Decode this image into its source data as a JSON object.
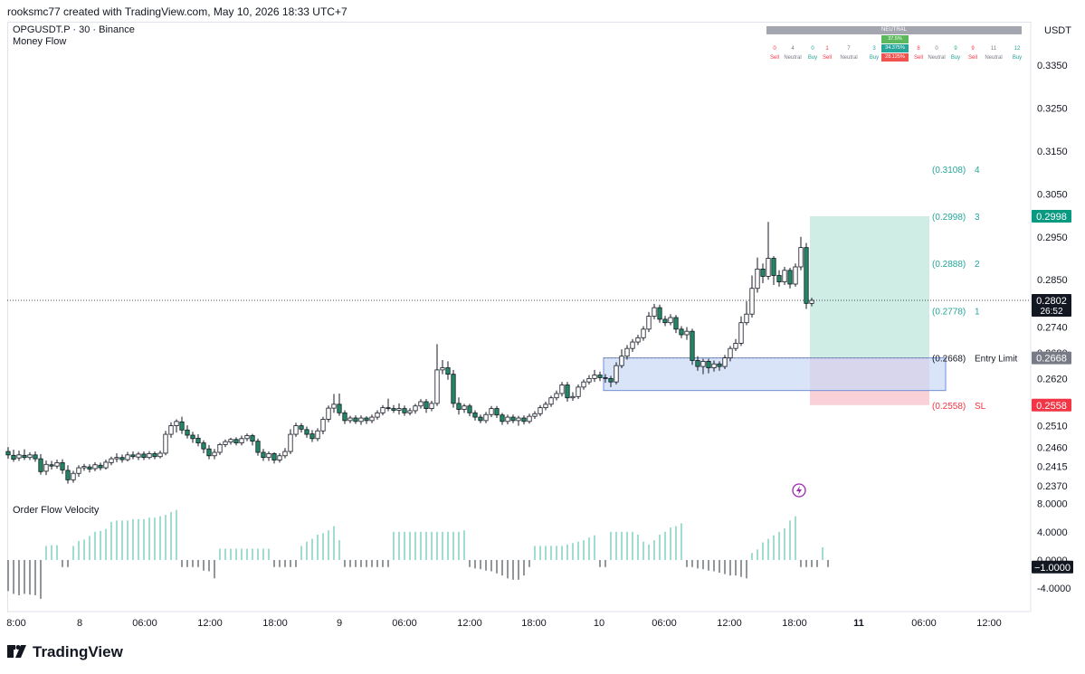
{
  "header": {
    "attribution": "rooksmc77 created with TradingView.com, May 10, 2026 18:33 UTC+7",
    "symbol_line": "OPGUSDT.P · 30 · Binance",
    "indicator_1": "Money Flow",
    "indicator_2": "Order Flow Velocity",
    "currency": "USDT",
    "logo": "TradingView"
  },
  "summary_panel": {
    "title": "NEUTRAL",
    "pct_buy": "37.5%",
    "pct_neutral": "34.375%",
    "pct_sell": "28.125%",
    "counts": [
      "0",
      "4",
      "0",
      "1",
      "7",
      "3",
      "1",
      "8",
      "0",
      "9",
      "9",
      "11",
      "12"
    ],
    "labels": [
      "Sell",
      "Neutral",
      "Buy",
      "Sell",
      "Neutral",
      "Buy",
      "",
      "Sell",
      "Neutral",
      "Buy",
      "Sell",
      "Neutral",
      "Buy"
    ]
  },
  "colors": {
    "up": "#089981",
    "down": "#f23645",
    "candle_up_fill": "#ffffff",
    "candle_down_fill": "#131722",
    "target_zone": "#bfe6dc",
    "stop_zone": "#f8c9cf",
    "entry_box": "#c9d8f7",
    "entry_box_border": "#6f8fd8",
    "osc_up": "#80d0bf",
    "osc_down": "#6f7278"
  },
  "chart_data": {
    "type": "candlestick",
    "title": "OPGUSDT.P · 30 · Binance",
    "price_axis": {
      "ticks": [
        "0.3350",
        "0.3250",
        "0.3150",
        "0.3050",
        "0.2950",
        "0.2850",
        "0.2740",
        "0.2680",
        "0.2620",
        "0.2510",
        "0.2460",
        "0.2415",
        "0.2370"
      ],
      "current_price": "0.2802",
      "countdown": "26:52"
    },
    "time_axis": [
      "8:00",
      "8",
      "06:00",
      "12:00",
      "18:00",
      "9",
      "06:00",
      "12:00",
      "18:00",
      "10",
      "06:00",
      "12:00",
      "18:00",
      "11",
      "06:00",
      "12:00"
    ],
    "candles": [
      [
        0.245,
        0.2442,
        0.246,
        0.2433
      ],
      [
        0.2441,
        0.2432,
        0.2454,
        0.2426
      ],
      [
        0.2435,
        0.2442,
        0.2452,
        0.2428
      ],
      [
        0.2441,
        0.2436,
        0.2455,
        0.243
      ],
      [
        0.2436,
        0.2442,
        0.2448,
        0.243
      ],
      [
        0.2442,
        0.2433,
        0.245,
        0.2426
      ],
      [
        0.2433,
        0.2403,
        0.2444,
        0.2396
      ],
      [
        0.2404,
        0.242,
        0.2429,
        0.2395
      ],
      [
        0.2419,
        0.2416,
        0.2428,
        0.2408
      ],
      [
        0.2416,
        0.2424,
        0.2431,
        0.241
      ],
      [
        0.2424,
        0.2407,
        0.2432,
        0.2398
      ],
      [
        0.2406,
        0.2384,
        0.2418,
        0.2375
      ],
      [
        0.2384,
        0.2399,
        0.2405,
        0.2377
      ],
      [
        0.2399,
        0.2412,
        0.2418,
        0.2391
      ],
      [
        0.2412,
        0.2415,
        0.2421,
        0.2405
      ],
      [
        0.2414,
        0.2409,
        0.242,
        0.2401
      ],
      [
        0.241,
        0.2419,
        0.2425,
        0.2404
      ],
      [
        0.2418,
        0.2412,
        0.2424,
        0.2406
      ],
      [
        0.2412,
        0.2425,
        0.2431,
        0.2408
      ],
      [
        0.2424,
        0.2433,
        0.2438,
        0.2418
      ],
      [
        0.2433,
        0.2436,
        0.2446,
        0.2425
      ],
      [
        0.2436,
        0.2431,
        0.2443,
        0.2424
      ],
      [
        0.2431,
        0.2442,
        0.2449,
        0.2427
      ],
      [
        0.2442,
        0.2438,
        0.245,
        0.2432
      ],
      [
        0.2437,
        0.2444,
        0.2449,
        0.243
      ],
      [
        0.2444,
        0.2436,
        0.245,
        0.243
      ],
      [
        0.2436,
        0.2445,
        0.2451,
        0.2432
      ],
      [
        0.2445,
        0.2438,
        0.245,
        0.2432
      ],
      [
        0.2438,
        0.2446,
        0.2452,
        0.2434
      ],
      [
        0.2446,
        0.249,
        0.2498,
        0.2441
      ],
      [
        0.249,
        0.251,
        0.2518,
        0.2482
      ],
      [
        0.251,
        0.252,
        0.2525,
        0.2494
      ],
      [
        0.2519,
        0.25,
        0.2531,
        0.2491
      ],
      [
        0.25,
        0.2488,
        0.2511,
        0.248
      ],
      [
        0.2488,
        0.248,
        0.2496,
        0.247
      ],
      [
        0.2481,
        0.247,
        0.249,
        0.2462
      ],
      [
        0.247,
        0.2456,
        0.2476,
        0.2446
      ],
      [
        0.2456,
        0.244,
        0.2465,
        0.2432
      ],
      [
        0.244,
        0.2448,
        0.2456,
        0.2432
      ],
      [
        0.2448,
        0.2466,
        0.247,
        0.2442
      ],
      [
        0.2466,
        0.2473,
        0.2478,
        0.246
      ],
      [
        0.2472,
        0.2478,
        0.2482,
        0.2466
      ],
      [
        0.2478,
        0.247,
        0.2483,
        0.2464
      ],
      [
        0.247,
        0.248,
        0.2487,
        0.2464
      ],
      [
        0.248,
        0.2487,
        0.2492,
        0.2474
      ],
      [
        0.2487,
        0.2474,
        0.2491,
        0.2464
      ],
      [
        0.2474,
        0.2448,
        0.248,
        0.244
      ],
      [
        0.2448,
        0.2436,
        0.2456,
        0.2428
      ],
      [
        0.2436,
        0.2445,
        0.245,
        0.2428
      ],
      [
        0.2445,
        0.243,
        0.2448,
        0.2422
      ],
      [
        0.243,
        0.244,
        0.2446,
        0.2424
      ],
      [
        0.244,
        0.245,
        0.2458,
        0.2434
      ],
      [
        0.245,
        0.249,
        0.2502,
        0.2444
      ],
      [
        0.249,
        0.251,
        0.2517,
        0.2484
      ],
      [
        0.251,
        0.2502,
        0.2516,
        0.2494
      ],
      [
        0.2501,
        0.249,
        0.2508,
        0.2482
      ],
      [
        0.2491,
        0.248,
        0.25,
        0.2472
      ],
      [
        0.248,
        0.2498,
        0.2504,
        0.2474
      ],
      [
        0.2498,
        0.2525,
        0.2531,
        0.249
      ],
      [
        0.2525,
        0.2551,
        0.2557,
        0.2518
      ],
      [
        0.2551,
        0.256,
        0.2584,
        0.254
      ],
      [
        0.256,
        0.254,
        0.2585,
        0.2533
      ],
      [
        0.254,
        0.2522,
        0.2546,
        0.2514
      ],
      [
        0.2522,
        0.2528,
        0.2533,
        0.2516
      ],
      [
        0.2528,
        0.252,
        0.2534,
        0.2514
      ],
      [
        0.252,
        0.2528,
        0.2534,
        0.2512
      ],
      [
        0.2528,
        0.2522,
        0.2532,
        0.2514
      ],
      [
        0.2522,
        0.253,
        0.2536,
        0.2516
      ],
      [
        0.253,
        0.254,
        0.2546,
        0.2524
      ],
      [
        0.254,
        0.2552,
        0.2558,
        0.2534
      ],
      [
        0.2552,
        0.255,
        0.2573,
        0.2544
      ],
      [
        0.255,
        0.2546,
        0.2558,
        0.254
      ],
      [
        0.2546,
        0.255,
        0.2562,
        0.2536
      ],
      [
        0.255,
        0.254,
        0.2557,
        0.2533
      ],
      [
        0.254,
        0.2545,
        0.2551,
        0.2534
      ],
      [
        0.2545,
        0.2556,
        0.2561,
        0.2538
      ],
      [
        0.2556,
        0.2566,
        0.2572,
        0.255
      ],
      [
        0.2566,
        0.255,
        0.2572,
        0.254
      ],
      [
        0.255,
        0.2562,
        0.2568,
        0.2544
      ],
      [
        0.2562,
        0.264,
        0.27,
        0.2556
      ],
      [
        0.264,
        0.2645,
        0.2663,
        0.263
      ],
      [
        0.2645,
        0.263,
        0.266,
        0.2617
      ],
      [
        0.263,
        0.2562,
        0.264,
        0.2552
      ],
      [
        0.2562,
        0.2548,
        0.2576,
        0.2536
      ],
      [
        0.2548,
        0.2556,
        0.2561,
        0.254
      ],
      [
        0.2556,
        0.254,
        0.2561,
        0.2532
      ],
      [
        0.254,
        0.253,
        0.2546,
        0.2522
      ],
      [
        0.253,
        0.2522,
        0.2536,
        0.2516
      ],
      [
        0.2522,
        0.2536,
        0.2542,
        0.2516
      ],
      [
        0.2536,
        0.255,
        0.2556,
        0.253
      ],
      [
        0.255,
        0.2535,
        0.2556,
        0.2528
      ],
      [
        0.2535,
        0.252,
        0.254,
        0.2512
      ],
      [
        0.252,
        0.253,
        0.2536,
        0.2513
      ],
      [
        0.253,
        0.2522,
        0.2536,
        0.2516
      ],
      [
        0.2522,
        0.2528,
        0.2533,
        0.251
      ],
      [
        0.2528,
        0.252,
        0.2534,
        0.2513
      ],
      [
        0.252,
        0.2532,
        0.2538,
        0.2515
      ],
      [
        0.2532,
        0.2538,
        0.2544,
        0.2526
      ],
      [
        0.2538,
        0.2552,
        0.2558,
        0.2532
      ],
      [
        0.2552,
        0.256,
        0.2566,
        0.2546
      ],
      [
        0.256,
        0.2575,
        0.258,
        0.2554
      ],
      [
        0.2575,
        0.2585,
        0.2592,
        0.2569
      ],
      [
        0.2585,
        0.2605,
        0.2612,
        0.2578
      ],
      [
        0.2605,
        0.2575,
        0.2612,
        0.2566
      ],
      [
        0.2575,
        0.2578,
        0.2588,
        0.2568
      ],
      [
        0.2578,
        0.26,
        0.2606,
        0.2572
      ],
      [
        0.26,
        0.2612,
        0.2618,
        0.2594
      ],
      [
        0.2612,
        0.262,
        0.2628,
        0.2606
      ],
      [
        0.262,
        0.2628,
        0.264,
        0.2612
      ],
      [
        0.2628,
        0.2622,
        0.2636,
        0.2614
      ],
      [
        0.2622,
        0.262,
        0.263,
        0.261
      ],
      [
        0.262,
        0.2612,
        0.2626,
        0.26
      ],
      [
        0.2612,
        0.265,
        0.2658,
        0.2606
      ],
      [
        0.265,
        0.2672,
        0.2688,
        0.2644
      ],
      [
        0.2672,
        0.269,
        0.2698,
        0.2664
      ],
      [
        0.269,
        0.2705,
        0.2712,
        0.2682
      ],
      [
        0.2705,
        0.2715,
        0.2722,
        0.2698
      ],
      [
        0.2715,
        0.2735,
        0.2742,
        0.2708
      ],
      [
        0.2735,
        0.2765,
        0.2775,
        0.2728
      ],
      [
        0.2765,
        0.2785,
        0.2794,
        0.2758
      ],
      [
        0.2785,
        0.2758,
        0.2792,
        0.275
      ],
      [
        0.2758,
        0.275,
        0.2766,
        0.2742
      ],
      [
        0.275,
        0.2762,
        0.277,
        0.2744
      ],
      [
        0.2762,
        0.2735,
        0.2768,
        0.2726
      ],
      [
        0.2735,
        0.2722,
        0.2742,
        0.2714
      ],
      [
        0.2722,
        0.273,
        0.274,
        0.271
      ],
      [
        0.273,
        0.2662,
        0.2736,
        0.2652
      ],
      [
        0.2662,
        0.2648,
        0.2672,
        0.2638
      ],
      [
        0.2648,
        0.266,
        0.2666,
        0.263
      ],
      [
        0.266,
        0.2645,
        0.2666,
        0.2632
      ],
      [
        0.2645,
        0.2654,
        0.2662,
        0.2636
      ],
      [
        0.2654,
        0.2648,
        0.266,
        0.2638
      ],
      [
        0.2648,
        0.2668,
        0.2675,
        0.2642
      ],
      [
        0.2668,
        0.269,
        0.2696,
        0.266
      ],
      [
        0.269,
        0.2702,
        0.2712,
        0.2684
      ],
      [
        0.2702,
        0.275,
        0.2765,
        0.2696
      ],
      [
        0.275,
        0.277,
        0.28,
        0.2744
      ],
      [
        0.277,
        0.283,
        0.286,
        0.2762
      ],
      [
        0.283,
        0.2875,
        0.2902,
        0.282
      ],
      [
        0.2875,
        0.2858,
        0.2888,
        0.2842
      ],
      [
        0.2858,
        0.29,
        0.2985,
        0.285
      ],
      [
        0.29,
        0.286,
        0.2905,
        0.2838
      ],
      [
        0.286,
        0.2845,
        0.2872,
        0.2834
      ],
      [
        0.2845,
        0.2872,
        0.288,
        0.2838
      ],
      [
        0.2872,
        0.284,
        0.2878,
        0.283
      ],
      [
        0.284,
        0.288,
        0.2888,
        0.2834
      ],
      [
        0.288,
        0.2925,
        0.295,
        0.2872
      ],
      [
        0.2925,
        0.2795,
        0.2936,
        0.2782
      ],
      [
        0.2795,
        0.2802,
        0.2808,
        0.2788
      ]
    ],
    "trade_setup": {
      "targets": [
        {
          "price": "(0.3108)",
          "label": "4"
        },
        {
          "price": "(0.2998)",
          "label": "3"
        },
        {
          "price": "(0.2888)",
          "label": "2"
        },
        {
          "price": "(0.2778)",
          "label": "1"
        }
      ],
      "entry": {
        "price": "(0.2668)",
        "label": "Entry Limit"
      },
      "stop": {
        "price": "(0.2558)",
        "label": "SL"
      },
      "axis_badges": [
        "0.2998",
        "0.2668",
        "0.2558"
      ],
      "entry_zone": [
        0.2592,
        0.2668
      ]
    },
    "oscillator": {
      "ticks": [
        "8.0000",
        "4.0000",
        "0.0000",
        "-4.0000"
      ],
      "current_value": "−1.0000",
      "values": [
        -4.4,
        -4.8,
        -5.0,
        -4.8,
        -4.9,
        -5.0,
        -5.5,
        2.0,
        2.1,
        2.1,
        -1.0,
        -1.0,
        2.0,
        2.7,
        2.9,
        3.4,
        4.0,
        4.1,
        4.4,
        5.4,
        5.6,
        5.6,
        5.6,
        5.8,
        5.8,
        5.8,
        6.0,
        6.0,
        6.2,
        6.4,
        6.8,
        7.1,
        -1.0,
        -1.0,
        -1.0,
        -1.0,
        -1.5,
        -1.6,
        -2.6,
        1.6,
        1.6,
        1.6,
        1.6,
        1.6,
        1.6,
        1.6,
        1.6,
        1.6,
        1.6,
        -1.0,
        -1.0,
        -1.0,
        -1.0,
        -1.0,
        2.0,
        2.6,
        3.0,
        3.6,
        3.8,
        4.2,
        4.8,
        2.8,
        -1.0,
        -1.0,
        -1.0,
        -1.0,
        -1.0,
        -1.0,
        -1.0,
        -1.0,
        -1.0,
        4.0,
        4.0,
        4.0,
        4.0,
        4.0,
        4.0,
        4.0,
        4.0,
        4.0,
        4.0,
        4.0,
        4.0,
        4.0,
        4.2,
        -1.0,
        -1.2,
        -1.3,
        -1.5,
        -1.6,
        -1.9,
        -2.2,
        -2.6,
        -2.8,
        -2.8,
        -2.2,
        -1.0,
        2.0,
        2.0,
        2.0,
        2.0,
        2.0,
        2.0,
        2.2,
        2.4,
        2.6,
        2.8,
        3.2,
        3.5,
        -1.0,
        -1.0,
        4.0,
        4.0,
        4.0,
        4.0,
        4.0,
        3.6,
        2.6,
        2.2,
        2.8,
        3.6,
        4.0,
        4.6,
        4.8,
        5.2,
        -1.0,
        -1.0,
        -1.2,
        -1.3,
        -1.5,
        -1.6,
        -1.8,
        -2.0,
        -2.2,
        -2.2,
        -2.4,
        -2.6,
        1.0,
        1.5,
        2.5,
        3.0,
        3.5,
        4.0,
        4.5,
        5.6,
        6.2,
        -1.0,
        -1.0,
        -1.0,
        -1.0,
        1.8,
        -1.0
      ]
    },
    "grid": false,
    "legend": "none"
  }
}
